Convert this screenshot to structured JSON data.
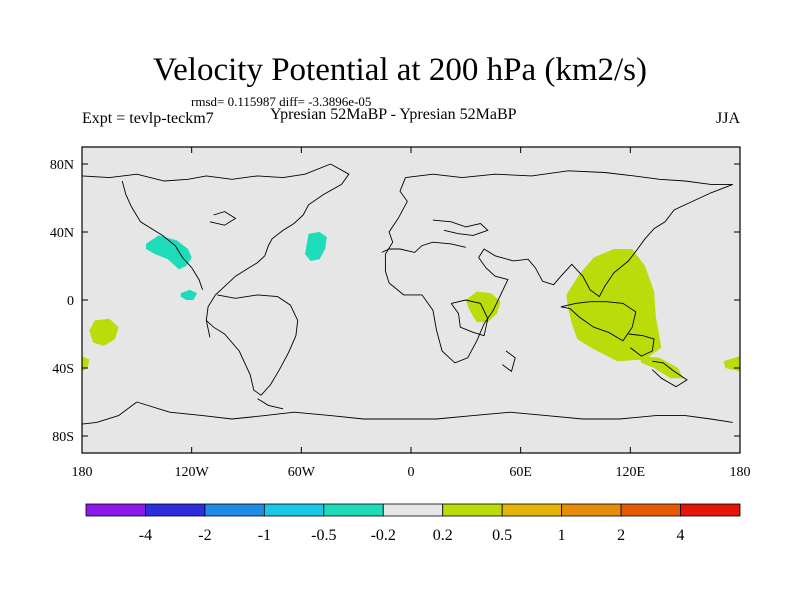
{
  "title": "Velocity Potential at 200 hPa (km2/s)",
  "stats_line": "rmsd= 0.115987 diff= -3.3896e-05",
  "expt_label": "Expt = tevlp-teckm7",
  "subtitle": "Ypresian  52MaBP - Ypresian  52MaBP",
  "season": "JJA",
  "chart_data": {
    "type": "heatmap",
    "title": "Velocity Potential at 200 hPa (km2/s)",
    "projection": "cylindrical-equidistant",
    "x_range": [
      -180,
      180
    ],
    "y_range": [
      -90,
      90
    ],
    "x_ticks": [
      {
        "value": -180,
        "label": "180"
      },
      {
        "value": -120,
        "label": "120W"
      },
      {
        "value": -60,
        "label": "60W"
      },
      {
        "value": 0,
        "label": "0"
      },
      {
        "value": 60,
        "label": "60E"
      },
      {
        "value": 120,
        "label": "120E"
      },
      {
        "value": 180,
        "label": "180"
      }
    ],
    "y_ticks": [
      {
        "value": 80,
        "label": "80N"
      },
      {
        "value": 40,
        "label": "40N"
      },
      {
        "value": 0,
        "label": "0"
      },
      {
        "value": -40,
        "label": "40S"
      },
      {
        "value": -80,
        "label": "80S"
      }
    ],
    "colorbar": {
      "colors": [
        "#8c1aeb",
        "#2d2ddc",
        "#1e8be6",
        "#19c8e6",
        "#1edcb9",
        "#e6e6e6",
        "#b9dc0a",
        "#e6b405",
        "#e68c0a",
        "#e65a05",
        "#e6140a"
      ],
      "labels": [
        "-4",
        "-2",
        "-1",
        "-0.5",
        "-0.2",
        "0.2",
        "0.5",
        "1",
        "2",
        "4"
      ]
    },
    "anomaly_regions": [
      {
        "name": "north-pacific-negative",
        "level": "-0.5 to -0.2",
        "color": "#1edcb9",
        "pts": [
          [
            -145,
            33
          ],
          [
            -138,
            38
          ],
          [
            -128,
            35
          ],
          [
            -122,
            30
          ],
          [
            -120,
            25
          ],
          [
            -123,
            20
          ],
          [
            -127,
            18
          ],
          [
            -133,
            24
          ],
          [
            -140,
            27
          ],
          [
            -145,
            30
          ]
        ]
      },
      {
        "name": "north-atlantic-negative",
        "level": "-0.5 to -0.2",
        "color": "#1edcb9",
        "pts": [
          [
            -56,
            39
          ],
          [
            -50,
            40
          ],
          [
            -46,
            37
          ],
          [
            -47,
            30
          ],
          [
            -50,
            24
          ],
          [
            -55,
            23
          ],
          [
            -58,
            27
          ],
          [
            -57,
            33
          ]
        ]
      },
      {
        "name": "central-america-negative",
        "level": "-0.5 to -0.2",
        "color": "#1edcb9",
        "pts": [
          [
            -126,
            4
          ],
          [
            -121,
            6
          ],
          [
            -117,
            4
          ],
          [
            -119,
            0
          ],
          [
            -123,
            0
          ],
          [
            -126,
            2
          ]
        ]
      },
      {
        "name": "south-pacific-positive",
        "level": "0.2 to 0.5",
        "color": "#b9dc0a",
        "pts": [
          [
            -173,
            -12
          ],
          [
            -165,
            -11
          ],
          [
            -160,
            -16
          ],
          [
            -162,
            -23
          ],
          [
            -168,
            -27
          ],
          [
            -174,
            -25
          ],
          [
            -176,
            -18
          ]
        ]
      },
      {
        "name": "west-edge-positive",
        "level": "0.2 to 0.5",
        "color": "#b9dc0a",
        "pts": [
          [
            -180,
            -33
          ],
          [
            -176,
            -35
          ],
          [
            -177,
            -40
          ],
          [
            -180,
            -42
          ]
        ]
      },
      {
        "name": "africa-positive",
        "level": "0.2 to 0.5",
        "color": "#b9dc0a",
        "pts": [
          [
            30,
            0
          ],
          [
            36,
            5
          ],
          [
            44,
            4
          ],
          [
            49,
            -1
          ],
          [
            47,
            -8
          ],
          [
            42,
            -13
          ],
          [
            36,
            -13
          ],
          [
            32,
            -6
          ]
        ]
      },
      {
        "name": "indian-ocean-positive",
        "level": "0.2 to 0.5",
        "color": "#b9dc0a",
        "pts": [
          [
            85,
            3
          ],
          [
            92,
            15
          ],
          [
            100,
            25
          ],
          [
            111,
            30
          ],
          [
            121,
            30
          ],
          [
            128,
            20
          ],
          [
            133,
            5
          ],
          [
            134,
            -10
          ],
          [
            137,
            -28
          ],
          [
            128,
            -35
          ],
          [
            113,
            -36
          ],
          [
            100,
            -29
          ],
          [
            91,
            -23
          ],
          [
            88,
            -14
          ],
          [
            86,
            -5
          ]
        ]
      },
      {
        "name": "australia-positive",
        "level": "0.2 to 0.5",
        "color": "#b9dc0a",
        "pts": [
          [
            125,
            -33
          ],
          [
            136,
            -34
          ],
          [
            146,
            -40
          ],
          [
            149,
            -46
          ],
          [
            142,
            -46
          ],
          [
            133,
            -40
          ],
          [
            126,
            -37
          ]
        ]
      },
      {
        "name": "east-edge-positive",
        "level": "0.2 to 0.5",
        "color": "#b9dc0a",
        "pts": [
          [
            171,
            -36
          ],
          [
            180,
            -33
          ],
          [
            180,
            -42
          ],
          [
            172,
            -40
          ]
        ]
      }
    ],
    "coastlines": [
      [
        [
          -180,
          73
        ],
        [
          -165,
          72
        ],
        [
          -150,
          74
        ],
        [
          -135,
          70
        ],
        [
          -122,
          71
        ],
        [
          -112,
          73
        ],
        [
          -98,
          71
        ],
        [
          -84,
          73
        ],
        [
          -70,
          72
        ],
        [
          -58,
          74
        ],
        [
          -44,
          80
        ]
      ],
      [
        [
          -44,
          80
        ],
        [
          -34,
          74
        ],
        [
          -38,
          68
        ],
        [
          -48,
          62
        ],
        [
          -56,
          56
        ],
        [
          -59,
          50
        ],
        [
          -64,
          45
        ],
        [
          -70,
          41
        ],
        [
          -76,
          36
        ],
        [
          -78,
          32
        ],
        [
          -80,
          26
        ]
      ],
      [
        [
          -80,
          26
        ],
        [
          -84,
          22
        ],
        [
          -90,
          18
        ],
        [
          -96,
          14
        ],
        [
          -102,
          8
        ],
        [
          -107,
          3
        ],
        [
          -111,
          -4
        ],
        [
          -112,
          -12
        ],
        [
          -110,
          -22
        ]
      ],
      [
        [
          -158,
          70
        ],
        [
          -156,
          62
        ],
        [
          -153,
          55
        ],
        [
          -148,
          46
        ],
        [
          -142,
          42
        ],
        [
          -136,
          38
        ],
        [
          -129,
          32
        ],
        [
          -125,
          25
        ],
        [
          -120,
          19
        ],
        [
          -116,
          12
        ],
        [
          -114,
          6
        ]
      ],
      [
        [
          -106,
          3
        ],
        [
          -96,
          1
        ],
        [
          -84,
          3
        ],
        [
          -73,
          2
        ],
        [
          -66,
          -3
        ],
        [
          -62,
          -12
        ],
        [
          -63,
          -21
        ],
        [
          -67,
          -31
        ],
        [
          -72,
          -41
        ],
        [
          -77,
          -50
        ],
        [
          -82,
          -56
        ],
        [
          -86,
          -53
        ],
        [
          -88,
          -44
        ],
        [
          -94,
          -30
        ],
        [
          -102,
          -20
        ],
        [
          -108,
          -16
        ],
        [
          -112,
          -12
        ]
      ],
      [
        [
          -3,
          72
        ],
        [
          12,
          74
        ],
        [
          28,
          72
        ],
        [
          46,
          74
        ],
        [
          66,
          73
        ],
        [
          86,
          76
        ],
        [
          106,
          75
        ],
        [
          122,
          73
        ],
        [
          136,
          71
        ],
        [
          150,
          70
        ],
        [
          164,
          68
        ],
        [
          176,
          68
        ]
      ],
      [
        [
          -3,
          72
        ],
        [
          -6,
          64
        ],
        [
          -2,
          58
        ],
        [
          -7,
          48
        ],
        [
          -12,
          40
        ],
        [
          -10,
          34
        ],
        [
          -14,
          27
        ],
        [
          -14,
          17
        ],
        [
          -12,
          10
        ],
        [
          -4,
          3
        ],
        [
          6,
          3
        ],
        [
          12,
          -6
        ],
        [
          14,
          -18
        ],
        [
          17,
          -30
        ],
        [
          24,
          -37
        ],
        [
          31,
          -34
        ],
        [
          36,
          -24
        ],
        [
          40,
          -14
        ],
        [
          45,
          -6
        ],
        [
          49,
          3
        ],
        [
          53,
          12
        ],
        [
          46,
          14
        ],
        [
          41,
          19
        ],
        [
          37,
          25
        ]
      ],
      [
        [
          37,
          25
        ],
        [
          40,
          30
        ],
        [
          46,
          26
        ],
        [
          56,
          23
        ],
        [
          64,
          24
        ],
        [
          68,
          19
        ],
        [
          72,
          11
        ],
        [
          78,
          9
        ],
        [
          82,
          14
        ],
        [
          88,
          21
        ],
        [
          94,
          14
        ],
        [
          98,
          6
        ],
        [
          103,
          2
        ],
        [
          106,
          8
        ],
        [
          111,
          16
        ],
        [
          119,
          23
        ],
        [
          124,
          30
        ],
        [
          128,
          36
        ],
        [
          133,
          42
        ],
        [
          139,
          46
        ],
        [
          144,
          53
        ],
        [
          154,
          58
        ],
        [
          164,
          63
        ],
        [
          176,
          68
        ]
      ],
      [
        [
          22,
          -2
        ],
        [
          26,
          -8
        ],
        [
          27,
          -16
        ],
        [
          34,
          -19
        ],
        [
          40,
          -21
        ],
        [
          42,
          -11
        ],
        [
          38,
          -2
        ],
        [
          30,
          0
        ],
        [
          22,
          -2
        ]
      ],
      [
        [
          82,
          -4
        ],
        [
          87,
          -5
        ],
        [
          92,
          -10
        ],
        [
          100,
          -16
        ],
        [
          108,
          -19
        ],
        [
          116,
          -24
        ],
        [
          121,
          -16
        ],
        [
          123,
          -7
        ],
        [
          116,
          -2
        ],
        [
          107,
          -1
        ],
        [
          98,
          -1
        ],
        [
          90,
          -2
        ],
        [
          82,
          -4
        ]
      ],
      [
        [
          119,
          -20
        ],
        [
          127,
          -21
        ],
        [
          133,
          -23
        ],
        [
          132,
          -30
        ],
        [
          126,
          -33
        ],
        [
          120,
          -28
        ]
      ],
      [
        [
          132,
          -36
        ],
        [
          138,
          -37
        ],
        [
          144,
          -42
        ],
        [
          151,
          -47
        ],
        [
          145,
          -51
        ],
        [
          137,
          -46
        ],
        [
          132,
          -41
        ]
      ],
      [
        [
          52,
          -30
        ],
        [
          57,
          -34
        ],
        [
          55,
          -42
        ],
        [
          50,
          -38
        ]
      ],
      [
        [
          -150,
          -60
        ],
        [
          -132,
          -66
        ],
        [
          -114,
          -68
        ],
        [
          -98,
          -70
        ],
        [
          -80,
          -68
        ],
        [
          -64,
          -66
        ],
        [
          -44,
          -68
        ],
        [
          -26,
          -70
        ],
        [
          -6,
          -70
        ],
        [
          14,
          -70
        ],
        [
          34,
          -68
        ],
        [
          54,
          -66
        ],
        [
          74,
          -68
        ],
        [
          94,
          -70
        ],
        [
          114,
          -70
        ],
        [
          134,
          -68
        ],
        [
          150,
          -68
        ],
        [
          164,
          -70
        ],
        [
          176,
          -72
        ]
      ],
      [
        [
          -150,
          -60
        ],
        [
          -160,
          -68
        ],
        [
          -172,
          -72
        ],
        [
          -180,
          -73
        ]
      ],
      [
        [
          -84,
          -58
        ],
        [
          -78,
          -62
        ],
        [
          -70,
          -64
        ]
      ],
      [
        [
          -110,
          46
        ],
        [
          -102,
          44
        ],
        [
          -96,
          48
        ],
        [
          -102,
          52
        ],
        [
          -108,
          50
        ]
      ],
      [
        [
          -16,
          28
        ],
        [
          -12,
          30
        ],
        [
          -6,
          30
        ],
        [
          2,
          28
        ],
        [
          6,
          32
        ],
        [
          12,
          34
        ],
        [
          22,
          33
        ],
        [
          30,
          31
        ]
      ],
      [
        [
          12,
          47
        ],
        [
          22,
          46
        ],
        [
          30,
          43
        ],
        [
          38,
          45
        ],
        [
          42,
          41
        ],
        [
          34,
          38
        ],
        [
          26,
          39
        ],
        [
          18,
          41
        ]
      ]
    ]
  }
}
